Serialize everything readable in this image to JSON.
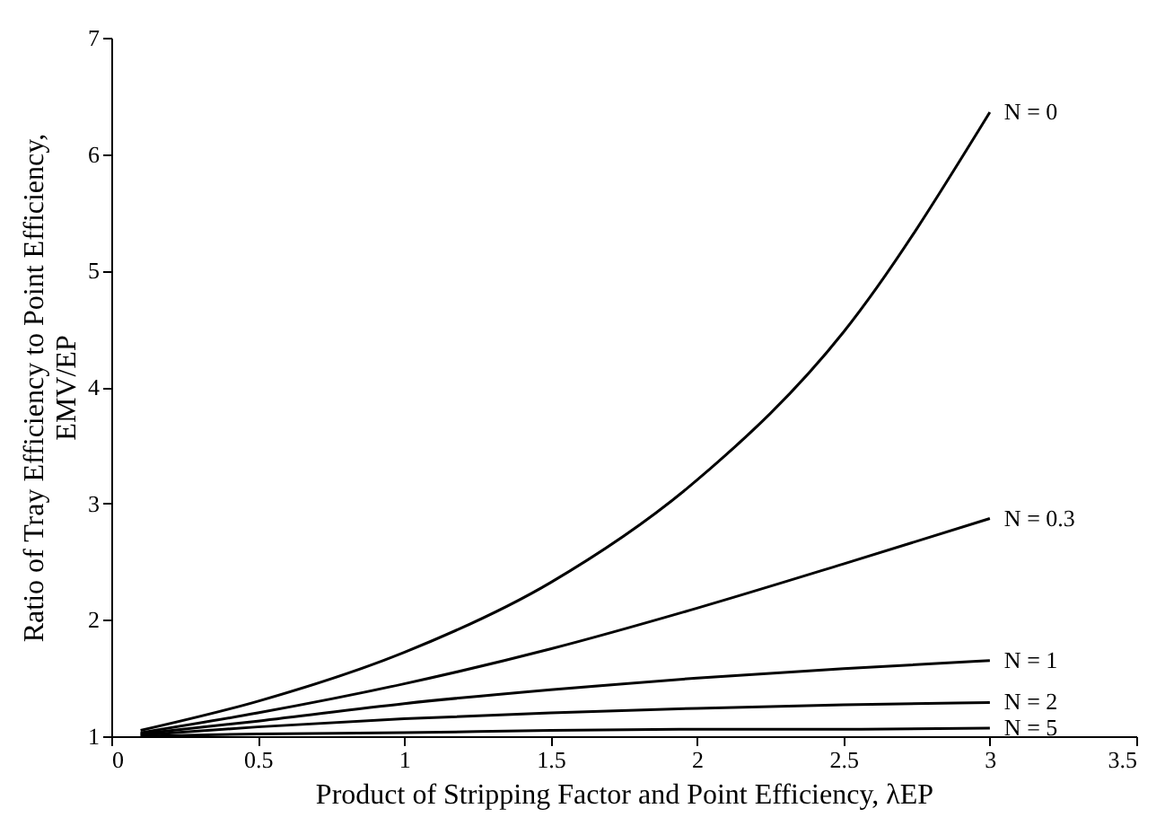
{
  "chart_data": {
    "type": "line",
    "xlabel": "Product of Stripping Factor and Point Efficiency, λEP",
    "ylabel": "Ratio of Tray Efficiency to Point Efficiency,\nEMV/EP",
    "xlim": [
      0,
      3.5
    ],
    "xticks": [
      0,
      0.5,
      1,
      1.5,
      2,
      2.5,
      3,
      3.5
    ],
    "ylim": [
      1,
      7
    ],
    "yticks": [
      1,
      2,
      3,
      4,
      5,
      6,
      7
    ],
    "grid": false,
    "marker": "none",
    "line_style": "solid",
    "series": [
      {
        "name": "N = 0",
        "color": "#000000",
        "x": [
          0.1,
          0.5,
          1,
          1.5,
          2,
          2.5,
          3
        ],
        "values": [
          1.05,
          1.3,
          1.72,
          2.32,
          3.2,
          4.47,
          6.36
        ]
      },
      {
        "name": "N = 0.3",
        "color": "#000000",
        "x": [
          0.1,
          0.5,
          1,
          1.5,
          2,
          2.5,
          3
        ],
        "values": [
          1.03,
          1.2,
          1.45,
          1.75,
          2.1,
          2.48,
          2.87
        ]
      },
      {
        "name": "N = 1",
        "color": "#000000",
        "x": [
          0.1,
          0.5,
          1,
          1.5,
          2,
          2.5,
          3
        ],
        "values": [
          1.02,
          1.13,
          1.28,
          1.4,
          1.5,
          1.58,
          1.65
        ]
      },
      {
        "name": "N = 2",
        "color": "#000000",
        "x": [
          0.1,
          0.5,
          1,
          1.5,
          2,
          2.5,
          3
        ],
        "values": [
          1.01,
          1.08,
          1.15,
          1.2,
          1.24,
          1.27,
          1.29
        ]
      },
      {
        "name": "N = 5",
        "color": "#000000",
        "x": [
          0.1,
          0.5,
          1,
          1.5,
          2,
          2.5,
          3
        ],
        "values": [
          1.0,
          1.02,
          1.03,
          1.05,
          1.06,
          1.06,
          1.07
        ]
      }
    ]
  }
}
